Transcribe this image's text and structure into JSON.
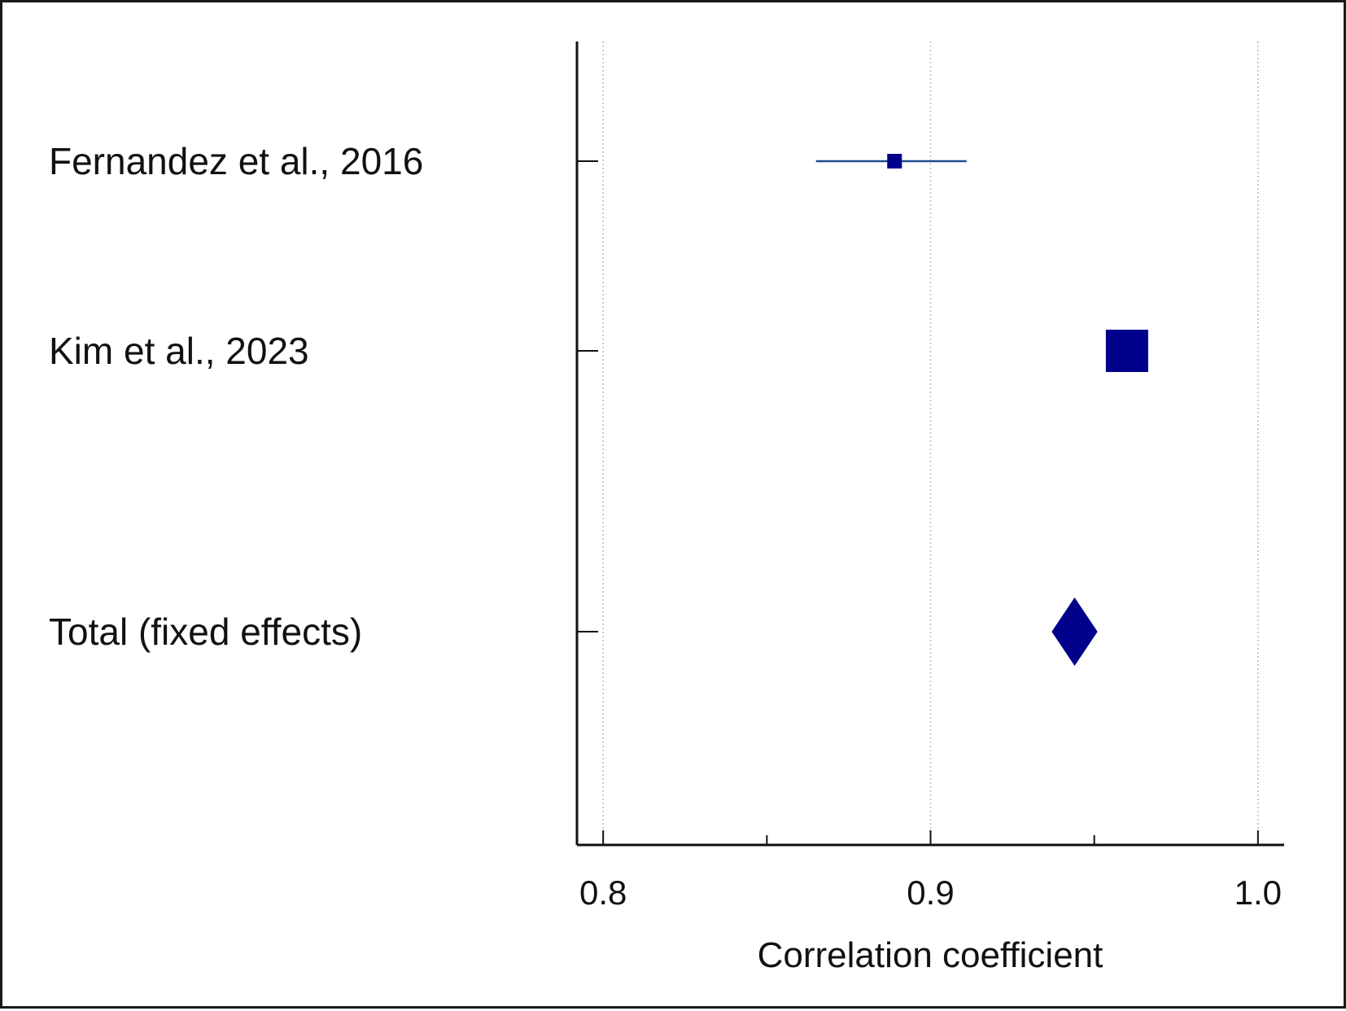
{
  "chart_data": {
    "type": "forest",
    "studies": [
      {
        "label": "Fernandez et al., 2016",
        "estimate": 0.889,
        "ci_low": 0.865,
        "ci_high": 0.911,
        "weight": "small",
        "marker": "square"
      },
      {
        "label": "Kim et al., 2023",
        "estimate": 0.96,
        "ci_low": 0.955,
        "ci_high": 0.965,
        "weight": "large",
        "marker": "square"
      },
      {
        "label": "Total (fixed effects)",
        "estimate": 0.944,
        "ci_low": 0.937,
        "ci_high": 0.951,
        "marker": "diamond"
      }
    ],
    "xlabel": "Correlation coefficient",
    "xlim": [
      0.792,
      1.008
    ],
    "xticks": [
      {
        "value": 0.8,
        "label": "0.8"
      },
      {
        "value": 0.9,
        "label": "0.9"
      },
      {
        "value": 1.0,
        "label": "1.0"
      }
    ],
    "minor_ticks": [
      0.85,
      0.95
    ],
    "grid": true,
    "colors": {
      "marker": "#00008b",
      "ci_line": "#1f4e8c",
      "axis": "#111111",
      "grid": "#bbbbbb"
    }
  }
}
